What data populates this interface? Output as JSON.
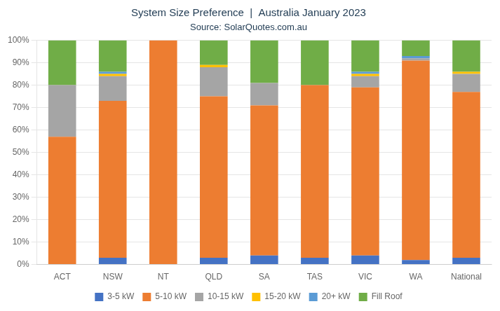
{
  "chart_data": {
    "type": "bar",
    "title": "System Size Preference  |  Australia January 2023",
    "subtitle": "Source: SolarQuotes.com.au",
    "categories": [
      "ACT",
      "NSW",
      "NT",
      "QLD",
      "SA",
      "TAS",
      "VIC",
      "WA",
      "National"
    ],
    "series": [
      {
        "name": "3-5 kW",
        "color": "#4472c4",
        "values": [
          0,
          3,
          0,
          3,
          4,
          3,
          4,
          2,
          3
        ]
      },
      {
        "name": "5-10 kW",
        "color": "#ed7d31",
        "values": [
          57,
          70,
          100,
          72,
          67,
          77,
          75,
          89,
          74
        ]
      },
      {
        "name": "10-15 kW",
        "color": "#a5a5a5",
        "values": [
          23,
          11,
          0,
          13,
          10,
          0,
          5,
          1,
          8
        ]
      },
      {
        "name": "15-20 kW",
        "color": "#ffc000",
        "values": [
          0,
          1,
          0,
          1,
          0,
          0,
          1,
          0,
          1
        ]
      },
      {
        "name": "20+ kW",
        "color": "#5b9bd5",
        "values": [
          0,
          1,
          0,
          0,
          0,
          0,
          1,
          1,
          0
        ]
      },
      {
        "name": "Fill Roof",
        "color": "#70ad47",
        "values": [
          20,
          14,
          0,
          11,
          19,
          20,
          14,
          7,
          14
        ]
      }
    ],
    "ylim": [
      0,
      100
    ],
    "yticks": [
      {
        "value": 0,
        "label": "0%"
      },
      {
        "value": 10,
        "label": "10%"
      },
      {
        "value": 20,
        "label": "20%"
      },
      {
        "value": 30,
        "label": "30%"
      },
      {
        "value": 40,
        "label": "40%"
      },
      {
        "value": 50,
        "label": "50%"
      },
      {
        "value": 60,
        "label": "60%"
      },
      {
        "value": 70,
        "label": "70%"
      },
      {
        "value": 80,
        "label": "80%"
      },
      {
        "value": 90,
        "label": "90%"
      },
      {
        "value": 100,
        "label": "100%"
      }
    ],
    "grid": true,
    "legend": "bottom",
    "stacked": true
  }
}
